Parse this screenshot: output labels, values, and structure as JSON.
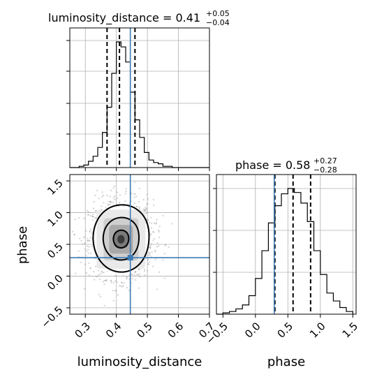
{
  "chart_data": {
    "type": "corner",
    "truth": {
      "luminosity_distance": 0.445,
      "phase": 0.29
    },
    "colors": {
      "truth": "#3f7ab5",
      "line": "#000000",
      "grid": "#b0b0b0",
      "scatter": "#9a9a9a"
    },
    "panels": [
      {
        "id": "ld_hist",
        "type": "histogram",
        "title_main": "luminosity_distance = 0.41",
        "title_sup": "+0.05",
        "title_sub": "−0.04",
        "xlim": [
          0.25,
          0.7
        ],
        "quantiles": [
          0.37,
          0.41,
          0.46
        ],
        "bin_edges": [
          0.25,
          0.265,
          0.28,
          0.295,
          0.31,
          0.325,
          0.34,
          0.355,
          0.37,
          0.385,
          0.4,
          0.415,
          0.43,
          0.445,
          0.46,
          0.475,
          0.49,
          0.505,
          0.52,
          0.535,
          0.55,
          0.565,
          0.58,
          0.595,
          0.61,
          0.625,
          0.64,
          0.655,
          0.67,
          0.685,
          0.7
        ],
        "counts": [
          0,
          0,
          1,
          2,
          5,
          9,
          16,
          28,
          48,
          75,
          100,
          96,
          84,
          60,
          38,
          24,
          12,
          6,
          4,
          3,
          1,
          1,
          0,
          0,
          0,
          0,
          0,
          0,
          0,
          0
        ]
      },
      {
        "id": "phase_hist",
        "type": "histogram",
        "title_main": "phase = 0.58",
        "title_sup": "+0.27",
        "title_sub": "−0.28",
        "xlim": [
          -0.6,
          1.55
        ],
        "quantiles": [
          0.3,
          0.58,
          0.85
        ],
        "bin_edges": [
          -0.6,
          -0.5,
          -0.4,
          -0.3,
          -0.2,
          -0.1,
          0.0,
          0.1,
          0.2,
          0.3,
          0.4,
          0.5,
          0.6,
          0.7,
          0.8,
          0.9,
          1.0,
          1.1,
          1.2,
          1.3,
          1.4,
          1.5
        ],
        "counts": [
          0,
          1,
          2,
          4,
          7,
          14,
          27,
          48,
          69,
          82,
          91,
          95,
          92,
          84,
          70,
          48,
          30,
          16,
          10,
          5,
          2
        ]
      },
      {
        "id": "joint",
        "type": "2d-density",
        "xlim": [
          0.25,
          0.7
        ],
        "ylim": [
          -0.6,
          1.6
        ],
        "mean": [
          0.415,
          0.58
        ],
        "sigma": [
          0.045,
          0.28
        ],
        "correlation": 0.05,
        "levels": [
          0.39,
          0.86,
          1.0,
          0.0
        ]
      }
    ],
    "x_ticks": {
      "ld": [
        0.3,
        0.4,
        0.5,
        0.6,
        0.7
      ],
      "phase": [
        -0.5,
        0.0,
        0.5,
        1.0,
        1.5
      ]
    },
    "y_ticks": {
      "phase": [
        -0.5,
        0.0,
        0.5,
        1.0,
        1.5
      ]
    },
    "tick_labels": {
      "ld": [
        "0.3",
        "0.4",
        "0.5",
        "0.6",
        "0.7"
      ],
      "phase": [
        "−0.5",
        "0.0",
        "0.5",
        "1.0",
        "1.5"
      ]
    },
    "xlabels": [
      "luminosity_distance",
      "phase"
    ],
    "ylabel": "phase"
  }
}
